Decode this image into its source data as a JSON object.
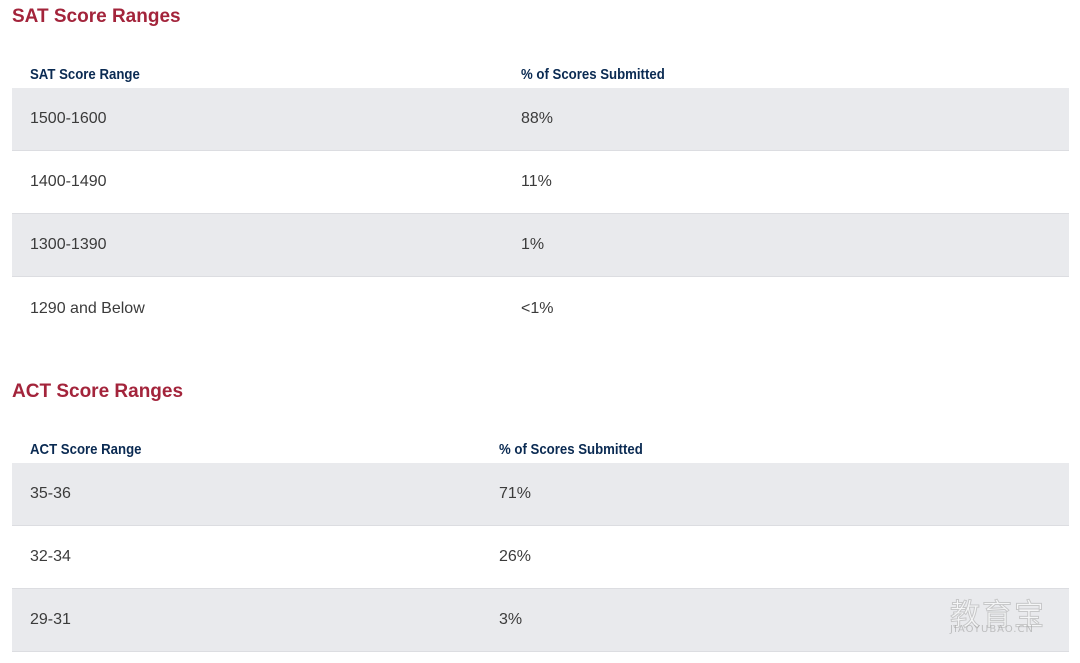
{
  "sat": {
    "title": "SAT Score Ranges",
    "headers": [
      "SAT Score Range",
      "% of Scores Submitted"
    ],
    "rows": [
      {
        "range": "1500-1600",
        "percent": "88%"
      },
      {
        "range": "1400-1490",
        "percent": "11%"
      },
      {
        "range": "1300-1390",
        "percent": "1%"
      },
      {
        "range": "1290 and Below",
        "percent": "<1%"
      }
    ]
  },
  "act": {
    "title": "ACT Score Ranges",
    "headers": [
      "ACT Score Range",
      "% of Scores Submitted"
    ],
    "rows": [
      {
        "range": "35-36",
        "percent": "71%"
      },
      {
        "range": "32-34",
        "percent": "26%"
      },
      {
        "range": "29-31",
        "percent": "3%"
      }
    ]
  },
  "watermark": {
    "chinese": "教育宝",
    "latin": "JIAOYUBAO.CN"
  },
  "colors": {
    "title": "#a3243b",
    "header_text": "#0a2a52",
    "body_text": "#3b3b3b",
    "shaded_row": "#e9eaed"
  }
}
